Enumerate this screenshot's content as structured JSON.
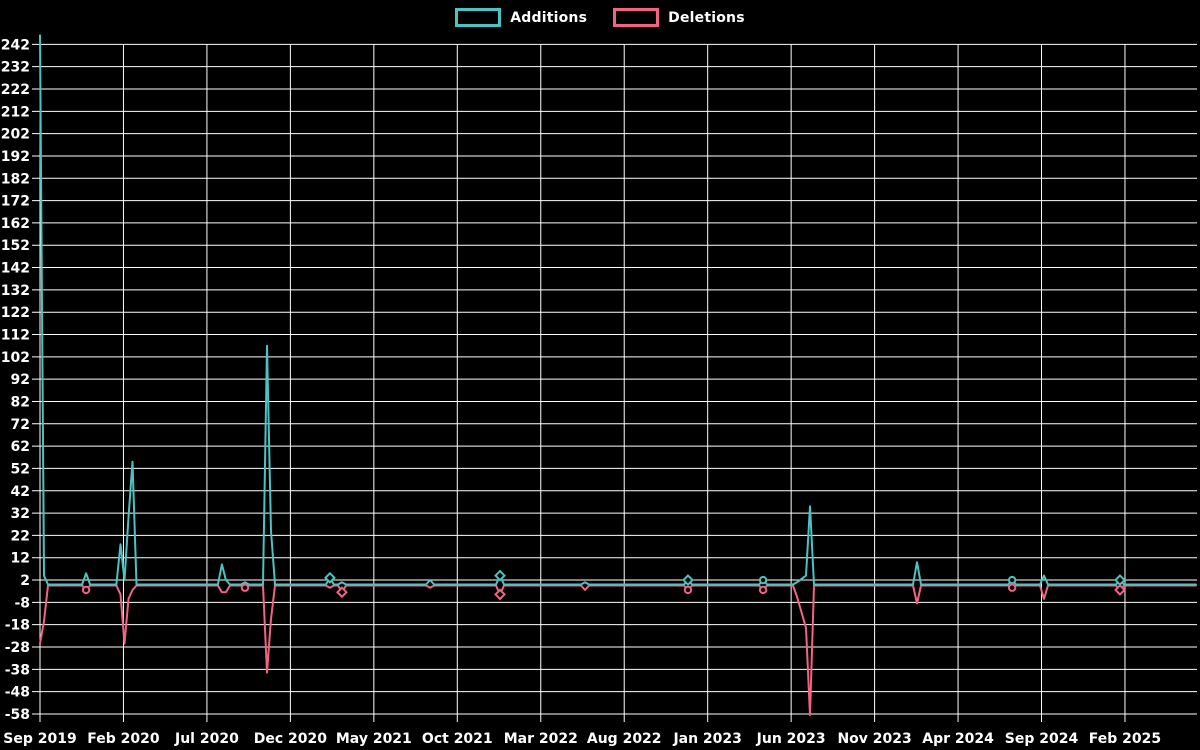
{
  "legend": {
    "position": "top-center",
    "items": [
      {
        "label": "Additions",
        "color": "#4bc3c3"
      },
      {
        "label": "Deletions",
        "color": "#f06585"
      }
    ]
  },
  "colors": {
    "background": "#000000",
    "grid": "#ffffff",
    "text": "#ffffff",
    "additions": "#4bc3c3",
    "deletions": "#f06585"
  },
  "chart_data": {
    "type": "line",
    "title": "",
    "xlabel": "",
    "ylabel": "",
    "grid": true,
    "x_unit": "months since Sep 2019 (weekly commit data)",
    "ylim": [
      -58,
      246
    ],
    "y_ticks": [
      242,
      232,
      222,
      212,
      202,
      192,
      182,
      172,
      162,
      152,
      142,
      132,
      122,
      112,
      102,
      92,
      82,
      72,
      62,
      52,
      42,
      32,
      22,
      12,
      2,
      -8,
      -18,
      -28,
      -38,
      -48,
      -58
    ],
    "x_ticks": [
      {
        "mo": 0,
        "label": "Sep 2019"
      },
      {
        "mo": 5,
        "label": "Feb 2020"
      },
      {
        "mo": 10,
        "label": "Jul 2020"
      },
      {
        "mo": 15,
        "label": "Dec 2020"
      },
      {
        "mo": 20,
        "label": "May 2021"
      },
      {
        "mo": 25,
        "label": "Oct 2021"
      },
      {
        "mo": 30,
        "label": "Mar 2022"
      },
      {
        "mo": 35,
        "label": "Aug 2022"
      },
      {
        "mo": 40,
        "label": "Jan 2023"
      },
      {
        "mo": 45,
        "label": "Jun 2023"
      },
      {
        "mo": 50,
        "label": "Nov 2023"
      },
      {
        "mo": 55,
        "label": "Apr 2024"
      },
      {
        "mo": 60,
        "label": "Sep 2024"
      },
      {
        "mo": 65,
        "label": "Feb 2025"
      }
    ],
    "series": [
      {
        "name": "Additions",
        "color": "#4bc3c3",
        "points": [
          [
            0,
            246
          ],
          [
            0.24,
            4
          ],
          [
            0.48,
            0
          ],
          [
            2.52,
            0
          ],
          [
            2.76,
            5
          ],
          [
            3.0,
            0
          ],
          [
            4.58,
            0
          ],
          [
            4.82,
            18
          ],
          [
            5.06,
            2
          ],
          [
            5.3,
            30
          ],
          [
            5.54,
            55
          ],
          [
            5.78,
            0
          ],
          [
            10.66,
            0
          ],
          [
            10.9,
            9
          ],
          [
            11.14,
            2
          ],
          [
            11.38,
            0
          ],
          [
            12.04,
            0
          ],
          [
            12.28,
            1
          ],
          [
            12.52,
            0
          ],
          [
            13.36,
            0
          ],
          [
            13.6,
            107
          ],
          [
            13.84,
            24
          ],
          [
            14.08,
            0
          ],
          [
            17.13,
            0
          ],
          [
            17.37,
            3
          ],
          [
            17.61,
            0
          ],
          [
            17.85,
            0
          ],
          [
            18.09,
            1
          ],
          [
            18.33,
            0
          ],
          [
            23.13,
            0
          ],
          [
            23.37,
            2
          ],
          [
            23.61,
            0
          ],
          [
            27.32,
            0
          ],
          [
            27.56,
            4
          ],
          [
            27.8,
            0
          ],
          [
            32.41,
            0
          ],
          [
            32.65,
            1
          ],
          [
            32.89,
            0
          ],
          [
            38.58,
            0
          ],
          [
            38.82,
            2
          ],
          [
            39.06,
            0
          ],
          [
            43.08,
            0
          ],
          [
            43.32,
            2
          ],
          [
            43.56,
            0
          ],
          [
            45.11,
            0
          ],
          [
            45.35,
            1
          ],
          [
            45.89,
            4
          ],
          [
            46.13,
            35
          ],
          [
            46.37,
            0
          ],
          [
            52.3,
            0
          ],
          [
            52.54,
            10
          ],
          [
            52.78,
            0
          ],
          [
            58.0,
            0
          ],
          [
            58.24,
            2
          ],
          [
            58.48,
            0
          ],
          [
            59.91,
            0
          ],
          [
            60.15,
            4
          ],
          [
            60.39,
            0
          ],
          [
            64.46,
            0
          ],
          [
            64.7,
            2
          ],
          [
            64.94,
            0
          ],
          [
            69.25,
            0
          ]
        ]
      },
      {
        "name": "Deletions",
        "color": "#f06585",
        "points": [
          [
            0,
            -26
          ],
          [
            0.24,
            -16
          ],
          [
            0.48,
            0
          ],
          [
            2.52,
            0
          ],
          [
            2.76,
            -2
          ],
          [
            3.0,
            0
          ],
          [
            4.58,
            0
          ],
          [
            4.82,
            -4
          ],
          [
            5.06,
            -26
          ],
          [
            5.3,
            -6
          ],
          [
            5.54,
            -2
          ],
          [
            5.78,
            0
          ],
          [
            10.66,
            0
          ],
          [
            10.9,
            -3
          ],
          [
            11.14,
            -3
          ],
          [
            11.38,
            0
          ],
          [
            12.04,
            0
          ],
          [
            12.28,
            -1
          ],
          [
            12.52,
            0
          ],
          [
            13.36,
            0
          ],
          [
            13.6,
            -39
          ],
          [
            13.84,
            -15
          ],
          [
            14.08,
            0
          ],
          [
            17.13,
            0
          ],
          [
            17.37,
            -1
          ],
          [
            17.61,
            0
          ],
          [
            17.85,
            0
          ],
          [
            18.09,
            -3
          ],
          [
            18.33,
            0
          ],
          [
            23.13,
            0
          ],
          [
            23.37,
            -1
          ],
          [
            23.61,
            0
          ],
          [
            27.32,
            0
          ],
          [
            27.56,
            -4
          ],
          [
            27.8,
            0
          ],
          [
            32.41,
            0
          ],
          [
            32.65,
            -2
          ],
          [
            32.89,
            0
          ],
          [
            38.58,
            0
          ],
          [
            38.82,
            -2
          ],
          [
            39.06,
            0
          ],
          [
            43.08,
            0
          ],
          [
            43.32,
            -2
          ],
          [
            43.56,
            0
          ],
          [
            45.11,
            0
          ],
          [
            45.35,
            -5
          ],
          [
            45.89,
            -19
          ],
          [
            46.13,
            -58
          ],
          [
            46.37,
            0
          ],
          [
            52.3,
            0
          ],
          [
            52.54,
            -8
          ],
          [
            52.78,
            0
          ],
          [
            58.0,
            0
          ],
          [
            58.24,
            -1
          ],
          [
            58.48,
            0
          ],
          [
            59.91,
            0
          ],
          [
            60.15,
            -6
          ],
          [
            60.39,
            0
          ],
          [
            64.46,
            0
          ],
          [
            64.7,
            -2
          ],
          [
            64.94,
            0
          ],
          [
            69.25,
            0
          ]
        ]
      }
    ],
    "markers": [
      {
        "series": "Deletions",
        "shape": "circle",
        "mo": 2.76,
        "v": -2
      },
      {
        "series": "Deletions",
        "shape": "circle",
        "mo": 12.28,
        "v": -1
      },
      {
        "series": "Additions",
        "shape": "diamond",
        "mo": 17.37,
        "v": 3
      },
      {
        "series": "Deletions",
        "shape": "diamond",
        "mo": 18.09,
        "v": -3
      },
      {
        "series": "Additions",
        "shape": "diamond",
        "mo": 27.56,
        "v": 4
      },
      {
        "series": "Deletions",
        "shape": "diamond",
        "mo": 27.56,
        "v": -4
      },
      {
        "series": "Additions",
        "shape": "diamond",
        "mo": 38.82,
        "v": 2
      },
      {
        "series": "Deletions",
        "shape": "circle",
        "mo": 38.82,
        "v": -2
      },
      {
        "series": "Additions",
        "shape": "circle",
        "mo": 43.32,
        "v": 2
      },
      {
        "series": "Deletions",
        "shape": "circle",
        "mo": 43.32,
        "v": -2
      },
      {
        "series": "Additions",
        "shape": "circle",
        "mo": 58.24,
        "v": 2
      },
      {
        "series": "Deletions",
        "shape": "circle",
        "mo": 58.24,
        "v": -1
      },
      {
        "series": "Additions",
        "shape": "diamond",
        "mo": 64.7,
        "v": 2
      },
      {
        "series": "Deletions",
        "shape": "diamond",
        "mo": 64.7,
        "v": -2
      }
    ]
  }
}
